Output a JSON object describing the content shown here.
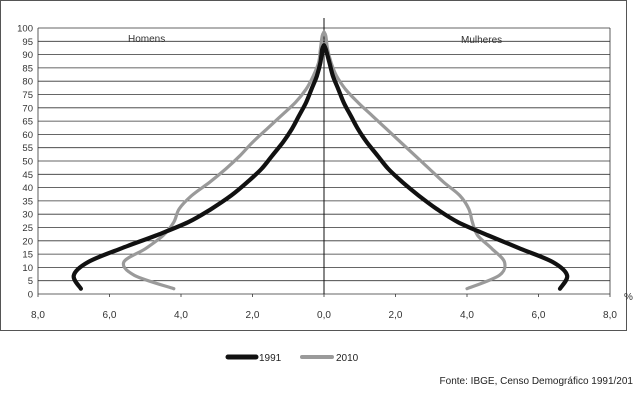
{
  "chart_data": {
    "type": "line",
    "title": "",
    "left_label": "Homens",
    "right_label": "Mulheres",
    "x_unit": "%",
    "x_tick_labels": [
      "8,0",
      "6,0",
      "4,0",
      "2,0",
      "0,0",
      "2,0",
      "4,0",
      "6,0",
      "8,0"
    ],
    "x_range": [
      -8,
      8
    ],
    "y_range": [
      0,
      100
    ],
    "y_ticks": [
      0,
      5,
      10,
      15,
      20,
      25,
      30,
      35,
      40,
      45,
      50,
      55,
      60,
      65,
      70,
      75,
      80,
      85,
      90,
      95,
      100
    ],
    "grid": true,
    "legend_position": "bottom",
    "source": "Fonte: IBGE, Censo Demográfico 1991/201",
    "series": [
      {
        "name": "1991",
        "color": "#111111",
        "style": "solid",
        "men": [
          [
            6.8,
            2
          ],
          [
            7.0,
            7
          ],
          [
            6.6,
            12
          ],
          [
            5.7,
            17
          ],
          [
            4.7,
            22
          ],
          [
            3.8,
            27
          ],
          [
            3.15,
            32
          ],
          [
            2.6,
            37
          ],
          [
            2.15,
            42
          ],
          [
            1.75,
            47
          ],
          [
            1.45,
            52
          ],
          [
            1.15,
            57
          ],
          [
            0.9,
            62
          ],
          [
            0.7,
            67
          ],
          [
            0.5,
            72
          ],
          [
            0.35,
            77
          ],
          [
            0.2,
            82
          ],
          [
            0.1,
            87
          ],
          [
            0.05,
            92
          ]
        ],
        "women": [
          [
            6.6,
            2
          ],
          [
            6.8,
            7
          ],
          [
            6.4,
            12
          ],
          [
            5.5,
            17
          ],
          [
            4.6,
            22
          ],
          [
            3.75,
            27
          ],
          [
            3.15,
            32
          ],
          [
            2.65,
            37
          ],
          [
            2.2,
            42
          ],
          [
            1.8,
            47
          ],
          [
            1.5,
            52
          ],
          [
            1.2,
            57
          ],
          [
            0.95,
            62
          ],
          [
            0.75,
            67
          ],
          [
            0.55,
            72
          ],
          [
            0.4,
            77
          ],
          [
            0.25,
            82
          ],
          [
            0.15,
            87
          ],
          [
            0.05,
            92
          ]
        ]
      },
      {
        "name": "2010",
        "color": "#9a9a9a",
        "style": "solid",
        "men": [
          [
            4.2,
            2
          ],
          [
            5.3,
            7
          ],
          [
            5.6,
            12
          ],
          [
            5.0,
            17
          ],
          [
            4.5,
            22
          ],
          [
            4.2,
            27
          ],
          [
            4.05,
            32
          ],
          [
            3.7,
            37
          ],
          [
            3.2,
            42
          ],
          [
            2.75,
            47
          ],
          [
            2.35,
            52
          ],
          [
            2.0,
            57
          ],
          [
            1.6,
            62
          ],
          [
            1.2,
            67
          ],
          [
            0.8,
            72
          ],
          [
            0.5,
            77
          ],
          [
            0.3,
            82
          ],
          [
            0.15,
            87
          ],
          [
            0.1,
            92
          ],
          [
            0.05,
            97
          ]
        ],
        "women": [
          [
            4.0,
            2
          ],
          [
            4.9,
            7
          ],
          [
            5.05,
            12
          ],
          [
            4.7,
            17
          ],
          [
            4.3,
            22
          ],
          [
            4.15,
            27
          ],
          [
            4.05,
            32
          ],
          [
            3.8,
            37
          ],
          [
            3.35,
            42
          ],
          [
            2.95,
            47
          ],
          [
            2.55,
            52
          ],
          [
            2.15,
            57
          ],
          [
            1.75,
            62
          ],
          [
            1.35,
            67
          ],
          [
            0.95,
            72
          ],
          [
            0.6,
            77
          ],
          [
            0.35,
            82
          ],
          [
            0.2,
            87
          ],
          [
            0.1,
            92
          ],
          [
            0.05,
            97
          ]
        ]
      }
    ]
  }
}
